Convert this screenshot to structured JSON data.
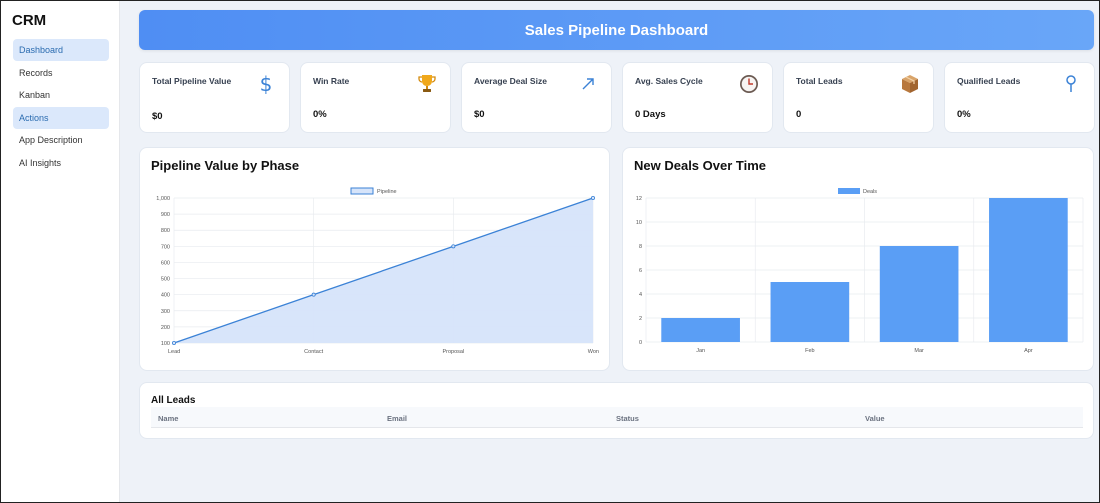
{
  "sidebar": {
    "brand": "CRM",
    "items": [
      {
        "label": "Dashboard",
        "active": true
      },
      {
        "label": "Records",
        "active": false
      },
      {
        "label": "Kanban",
        "active": false
      },
      {
        "label": "Actions",
        "active": true
      },
      {
        "label": "App Description",
        "active": false
      },
      {
        "label": "AI Insights",
        "active": false
      }
    ]
  },
  "header": {
    "title": "Sales Pipeline Dashboard"
  },
  "kpis": [
    {
      "label": "Total Pipeline Value",
      "value": "$0",
      "icon": "dollar-icon"
    },
    {
      "label": "Win Rate",
      "value": "0%",
      "icon": "trophy-icon"
    },
    {
      "label": "Average Deal Size",
      "value": "$0",
      "icon": "arrow-up-right-icon"
    },
    {
      "label": "Avg. Sales Cycle",
      "value": "0 Days",
      "icon": "clock-icon"
    },
    {
      "label": "Total Leads",
      "value": "0",
      "icon": "package-icon"
    },
    {
      "label": "Qualified Leads",
      "value": "0%",
      "icon": "filter-icon"
    }
  ],
  "pipeline_panel": {
    "title": "Pipeline Value by Phase"
  },
  "deals_panel": {
    "title": "New Deals Over Time"
  },
  "leads": {
    "title": "All Leads",
    "columns": [
      "Name",
      "Email",
      "Status",
      "Value"
    ]
  },
  "colors": {
    "accent": "#4f8ef3",
    "line": "#3b82d6",
    "fill": "#d6e4fa",
    "bar": "#5a9ef5"
  },
  "chart_data": [
    {
      "type": "area",
      "title": "Pipeline Value by Phase",
      "categories": [
        "Lead",
        "Contact",
        "Proposal",
        "Won"
      ],
      "series": [
        {
          "name": "Pipeline",
          "values": [
            100,
            400,
            700,
            1000
          ]
        }
      ],
      "ylim": [
        100,
        1000
      ],
      "yticks": [
        "100",
        "200",
        "300",
        "400",
        "500",
        "600",
        "700",
        "800",
        "900",
        "1,000"
      ],
      "legend": "top",
      "grid": true
    },
    {
      "type": "bar",
      "title": "New Deals Over Time",
      "categories": [
        "Jan",
        "Feb",
        "Mar",
        "Apr"
      ],
      "series": [
        {
          "name": "Deals",
          "values": [
            2,
            5,
            8,
            12
          ]
        }
      ],
      "ylim": [
        0,
        12
      ],
      "yticks": [
        "0",
        "2",
        "4",
        "6",
        "8",
        "10",
        "12"
      ],
      "legend": "top",
      "grid": true
    }
  ]
}
